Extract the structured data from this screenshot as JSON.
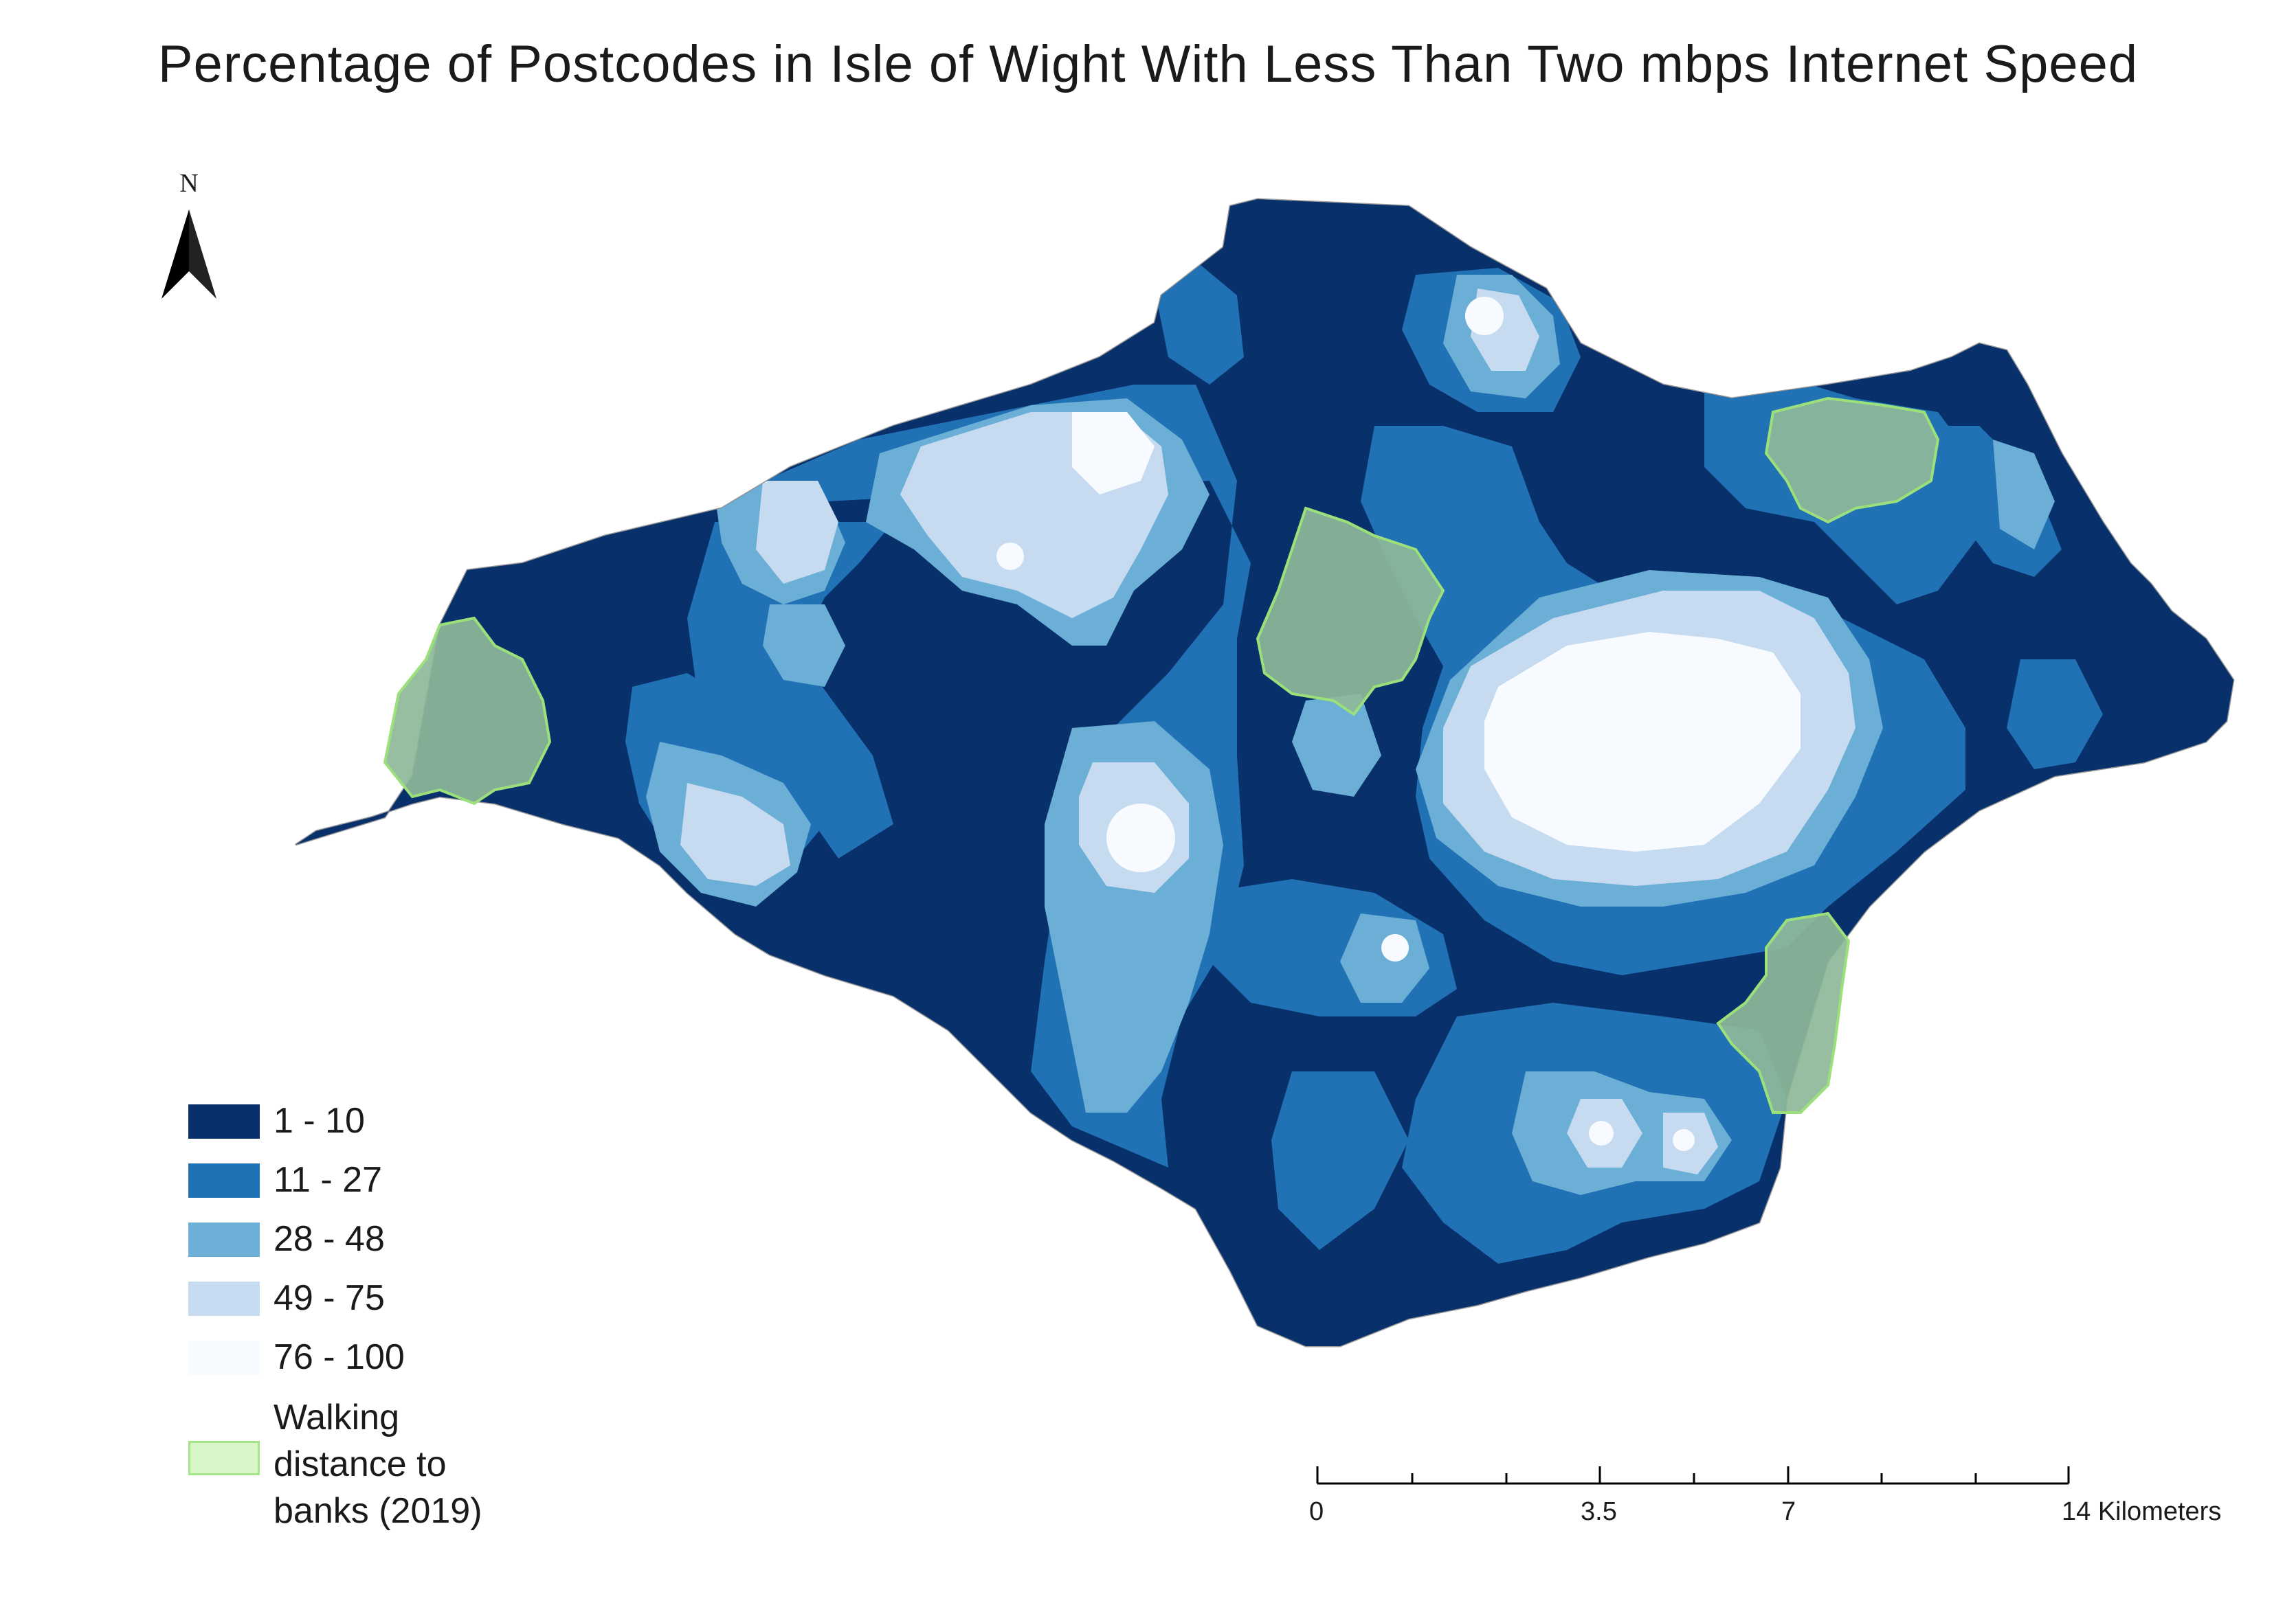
{
  "title": "Percentage of Postcodes in Isle of Wight With Less Than Two mbps Internet Speed",
  "north_arrow": {
    "letter": "N"
  },
  "legend": {
    "classes": [
      {
        "label": "1 - 10",
        "color": "#08306b"
      },
      {
        "label": "11 - 27",
        "color": "#2171b5"
      },
      {
        "label": "28 - 48",
        "color": "#6baed6"
      },
      {
        "label": "49 - 75",
        "color": "#c6dbef"
      },
      {
        "label": "76 - 100",
        "color": "#f7fbff"
      }
    ],
    "walking": {
      "label": "Walking distance to banks (2019)",
      "color": "#d8f5c8",
      "border": "#a6e68a"
    }
  },
  "scale_bar": {
    "labels": [
      "0",
      "3.5",
      "7",
      "14 Kilometers"
    ]
  },
  "colors": {
    "coast_outline": "#9a9a9a",
    "bank_fill": "#8fb89a",
    "bank_border": "#9be07a"
  }
}
